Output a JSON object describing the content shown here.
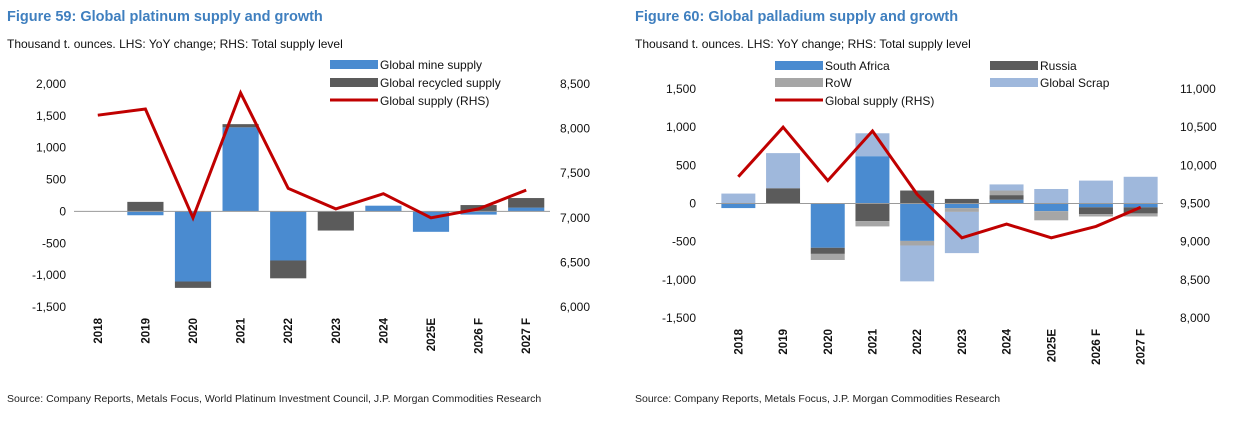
{
  "chart_data": [
    {
      "type": "bar",
      "title": "Figure 59: Global platinum supply and growth",
      "subtitle": "Thousand t. ounces. LHS: YoY change; RHS: Total supply level",
      "source": "Source: Company Reports, Metals Focus, World Platinum Investment Council, J.P. Morgan Commodities Research",
      "categories": [
        "2018",
        "2019",
        "2020",
        "2021",
        "2022",
        "2023",
        "2024",
        "2025E",
        "2026 F",
        "2027 F"
      ],
      "y_left_ticks": [
        "2,000",
        "1,500",
        "1,000",
        "500",
        "0",
        "-500",
        "-1,000",
        "-1,500"
      ],
      "y_right_ticks": [
        "8,500",
        "8,000",
        "7,500",
        "7,000",
        "6,500",
        "6,000"
      ],
      "ylim_left": [
        -1500,
        2000
      ],
      "ylim_right": [
        6000,
        8500
      ],
      "stacked": true,
      "series": [
        {
          "name": "Global mine supply",
          "type": "bar",
          "axis": "left",
          "color": "#4a8bd0",
          "values": [
            0,
            -60,
            -1100,
            1320,
            -770,
            0,
            90,
            -320,
            -50,
            60
          ]
        },
        {
          "name": "Global recycled supply",
          "type": "bar",
          "axis": "left",
          "color": "#5b5b5b",
          "values": [
            0,
            150,
            -100,
            50,
            -280,
            -300,
            0,
            0,
            100,
            150
          ]
        },
        {
          "name": "Global supply (RHS)",
          "type": "line",
          "axis": "right",
          "color": "#c00000",
          "values": [
            8150,
            8220,
            7000,
            8400,
            7330,
            7100,
            7270,
            7000,
            7100,
            7310
          ]
        }
      ]
    },
    {
      "type": "bar",
      "title": "Figure 60: Global palladium supply and growth",
      "subtitle": "Thousand t. ounces. LHS: YoY change; RHS: Total supply level",
      "source": "Source: Company Reports, Metals Focus, J.P. Morgan Commodities Research",
      "categories": [
        "2018",
        "2019",
        "2020",
        "2021",
        "2022",
        "2023",
        "2024",
        "2025E",
        "2026 F",
        "2027 F"
      ],
      "y_left_ticks": [
        "1,500",
        "1,000",
        "500",
        "0",
        "-500",
        "-1,000",
        "-1,500"
      ],
      "y_right_ticks": [
        "11,000",
        "10,500",
        "10,000",
        "9,500",
        "9,000",
        "8,500",
        "8,000"
      ],
      "ylim_left": [
        -1500,
        1500
      ],
      "ylim_right": [
        8000,
        11000
      ],
      "stacked": true,
      "series": [
        {
          "name": "South Africa",
          "type": "bar",
          "axis": "left",
          "color": "#4a8bd0",
          "values": [
            -60,
            0,
            -580,
            620,
            -490,
            -60,
            50,
            -100,
            -50,
            -50
          ]
        },
        {
          "name": "Russia",
          "type": "bar",
          "axis": "left",
          "color": "#5b5b5b",
          "values": [
            0,
            200,
            -80,
            -230,
            170,
            60,
            60,
            0,
            -90,
            -80
          ]
        },
        {
          "name": "RoW",
          "type": "bar",
          "axis": "left",
          "color": "#a6a6a6",
          "values": [
            0,
            0,
            -80,
            -70,
            -60,
            -50,
            60,
            -120,
            -30,
            -40
          ]
        },
        {
          "name": "Global Scrap",
          "type": "bar",
          "axis": "left",
          "color": "#9fb8dc",
          "values": [
            130,
            460,
            0,
            300,
            -470,
            -540,
            80,
            190,
            300,
            350
          ]
        },
        {
          "name": "Global supply (RHS)",
          "type": "line",
          "axis": "right",
          "color": "#c00000",
          "values": [
            9850,
            10500,
            9800,
            10450,
            9620,
            9050,
            9230,
            9050,
            9200,
            9450
          ]
        }
      ]
    }
  ]
}
